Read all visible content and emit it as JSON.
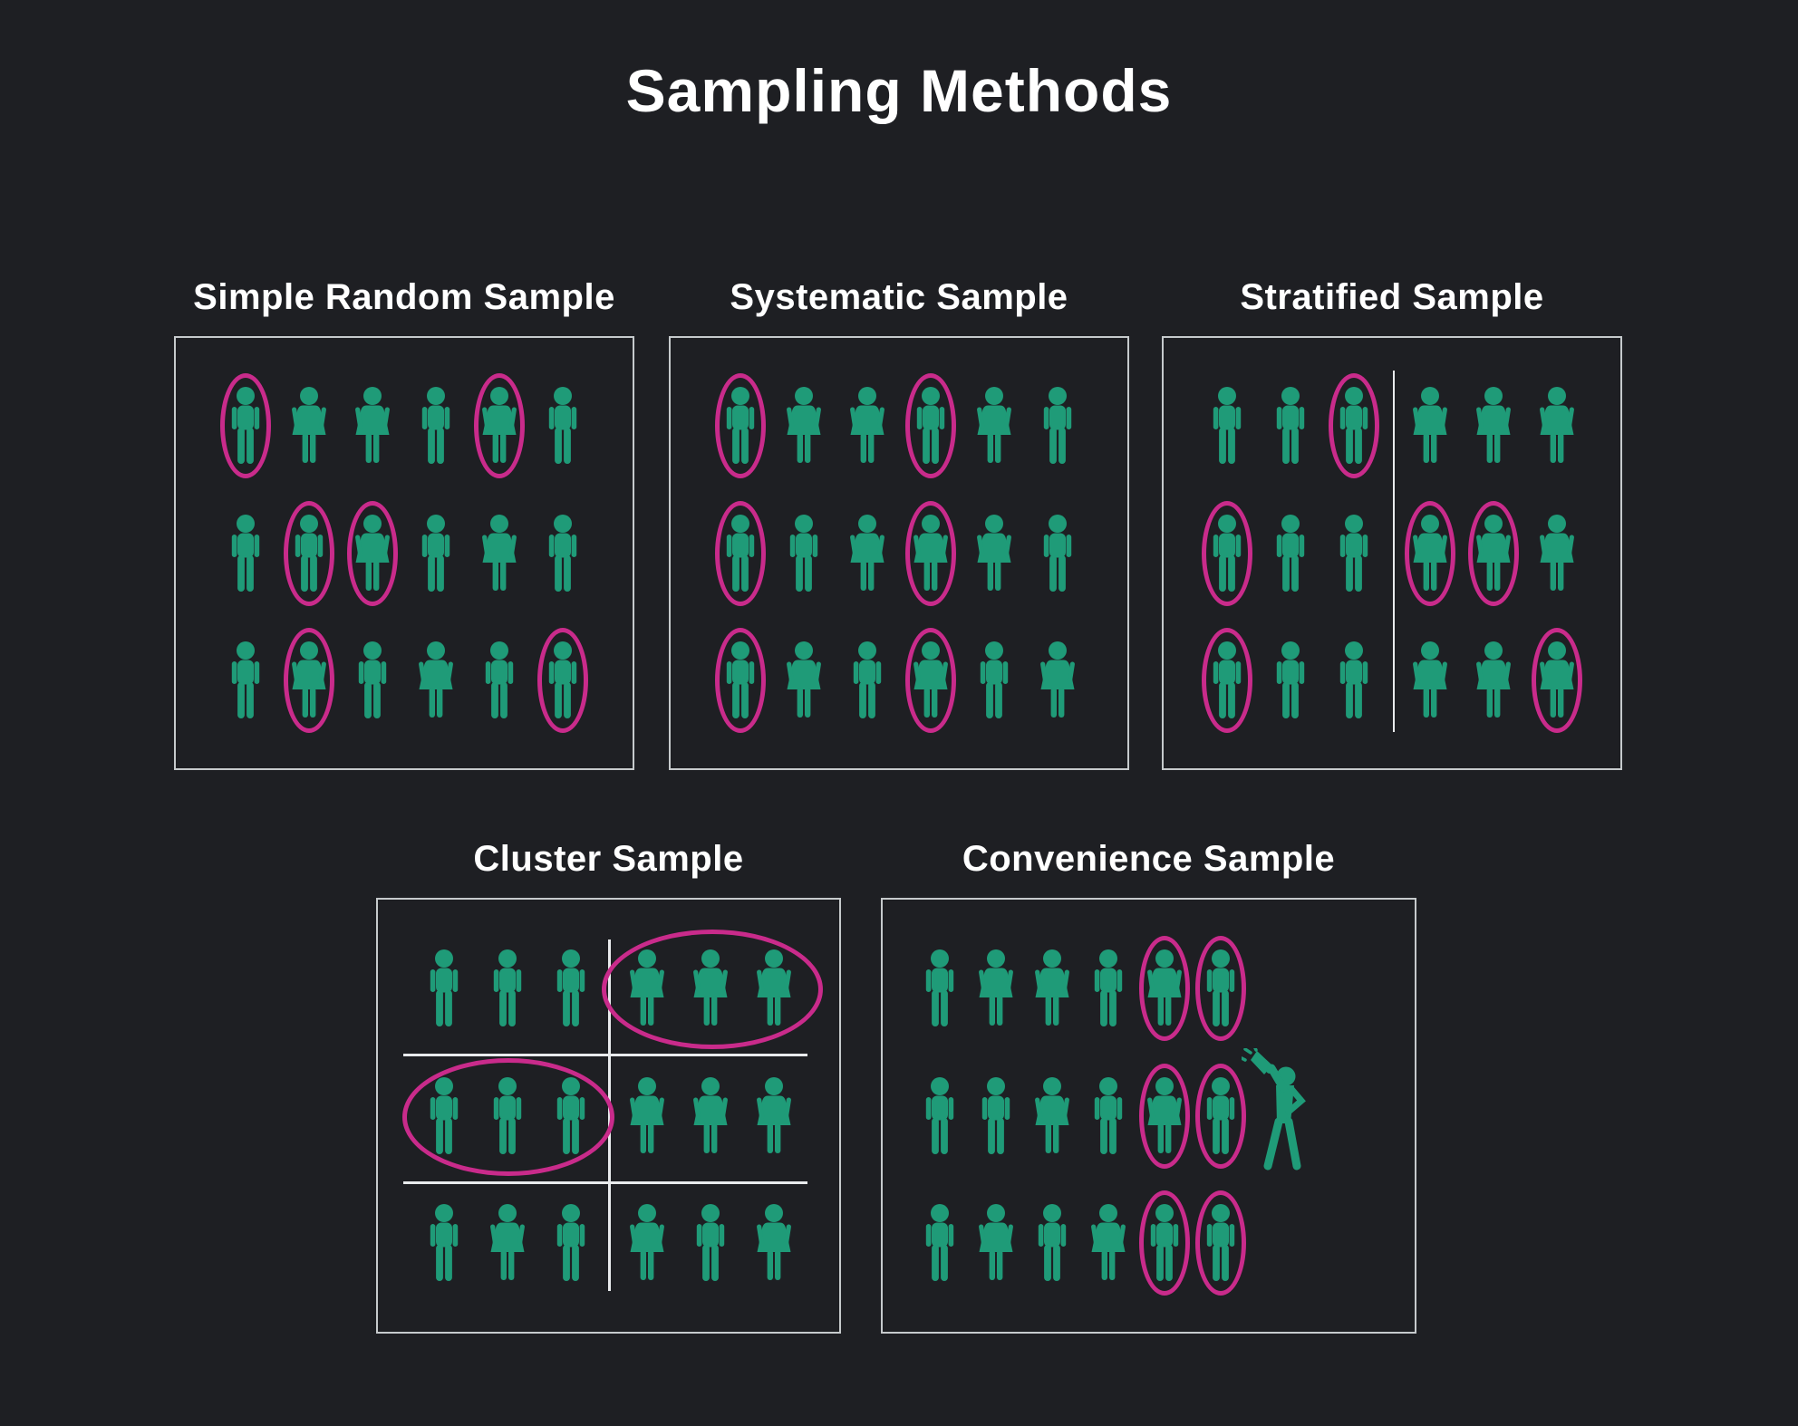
{
  "title": "Sampling Methods",
  "colors": {
    "background": "#1e1f23",
    "figure_teal": "#1f9b78",
    "selection_pink": "#c92b8b",
    "panel_border": "#c6cacc",
    "grid_line": "#e9ebed",
    "title_text": "#ffffff"
  },
  "figure_legend": {
    "M": "male person icon",
    "F": "female person icon",
    "*": "figure circled in pink (selected for sample)"
  },
  "panels": [
    {
      "id": "simple-random",
      "title": "Simple Random Sample",
      "rows": [
        [
          "M*",
          "F",
          "F",
          "M",
          "F*",
          "M"
        ],
        [
          "M",
          "M*",
          "F*",
          "M",
          "F",
          "M"
        ],
        [
          "M",
          "F*",
          "M",
          "F",
          "M",
          "M*"
        ]
      ]
    },
    {
      "id": "systematic",
      "title": "Systematic Sample",
      "rows": [
        [
          "M*",
          "F",
          "F",
          "M*",
          "F",
          "M"
        ],
        [
          "M*",
          "M",
          "F",
          "F*",
          "F",
          "M"
        ],
        [
          "M*",
          "F",
          "M",
          "F*",
          "M",
          "F"
        ]
      ]
    },
    {
      "id": "stratified",
      "title": "Stratified Sample",
      "divider": "vertical line separating male stratum (left) and female stratum (right)",
      "rows": [
        [
          "M",
          "M",
          "M*",
          "F",
          "F",
          "F"
        ],
        [
          "M*",
          "M",
          "M",
          "F*",
          "F*",
          "F"
        ],
        [
          "M*",
          "M",
          "M",
          "F",
          "F",
          "F*"
        ]
      ]
    },
    {
      "id": "cluster",
      "title": "Cluster Sample",
      "grid": "white lines split population into 6 cluster cells of 3 people",
      "group_circles": [
        "row 1 right cluster of 3 females circled",
        "row 2 left cluster of 3 males circled"
      ],
      "rows": [
        [
          "M",
          "M",
          "M",
          "F",
          "F",
          "F"
        ],
        [
          "M",
          "M",
          "M",
          "F",
          "F",
          "F"
        ],
        [
          "M",
          "F",
          "M",
          "F",
          "M",
          "F"
        ]
      ]
    },
    {
      "id": "convenience",
      "title": "Convenience Sample",
      "announcer": "megaphone person icon at right recruiting nearest people",
      "rows": [
        [
          "M",
          "F",
          "F",
          "M",
          "F*",
          "M*"
        ],
        [
          "M",
          "M",
          "F",
          "M",
          "F*",
          "M*"
        ],
        [
          "M",
          "F",
          "M",
          "F",
          "M*",
          "M*"
        ]
      ]
    }
  ]
}
